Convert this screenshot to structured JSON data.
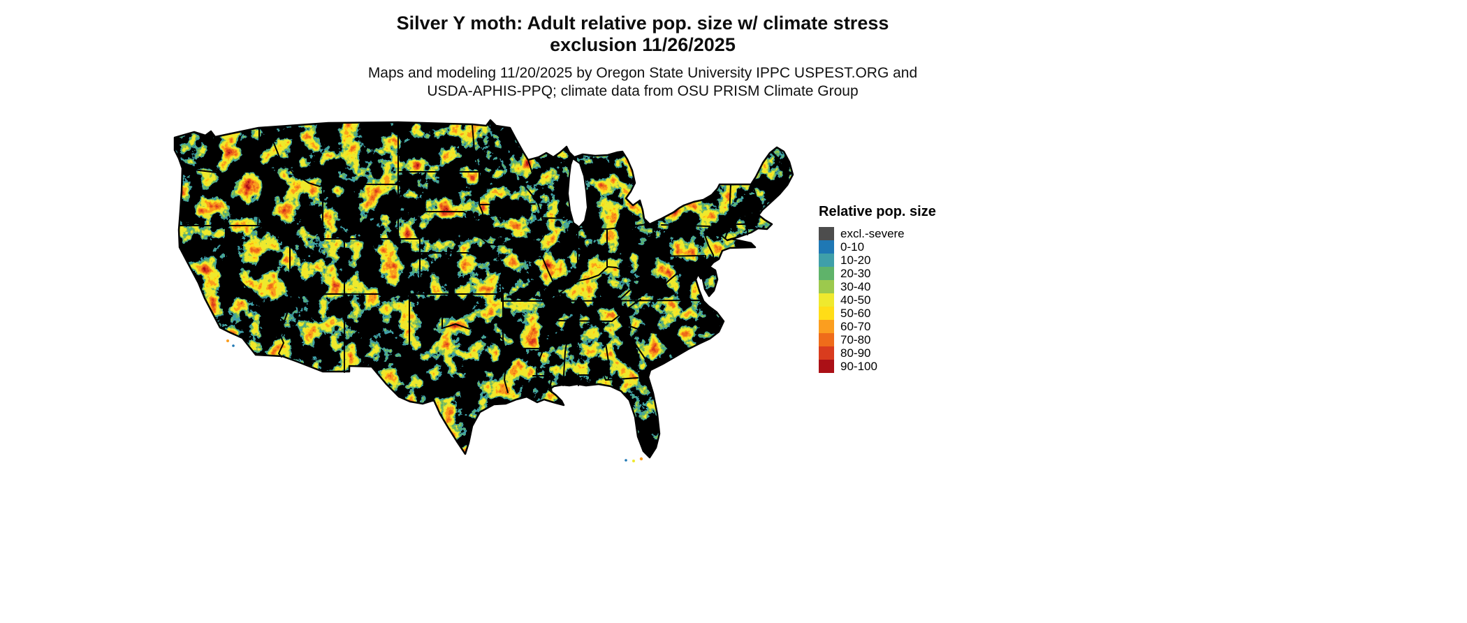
{
  "title": {
    "line1": "Silver Y moth: Adult relative pop. size w/ climate stress",
    "line2": "exclusion 11/26/2025"
  },
  "subtitle": {
    "line1": "Maps and modeling 11/20/2025 by Oregon State University IPPC USPEST.ORG and",
    "line2": "USDA-APHIS-PPQ; climate data from OSU PRISM Climate Group"
  },
  "map": {
    "region": "conterminous-united-states",
    "base_color": "#1f78b4",
    "border_color": "#000000"
  },
  "legend": {
    "title": "Relative pop. size",
    "items": [
      {
        "label": "excl.-severe",
        "color": "#4d4d4d"
      },
      {
        "label": "0-10",
        "color": "#1f78b4"
      },
      {
        "label": "10-20",
        "color": "#3f9fa9"
      },
      {
        "label": "20-30",
        "color": "#5fb36a"
      },
      {
        "label": "30-40",
        "color": "#9cc94d"
      },
      {
        "label": "40-50",
        "color": "#efe92e"
      },
      {
        "label": "50-60",
        "color": "#ffdd17"
      },
      {
        "label": "60-70",
        "color": "#fb9e1f"
      },
      {
        "label": "70-80",
        "color": "#ef6c1a"
      },
      {
        "label": "80-90",
        "color": "#d93c1e"
      },
      {
        "label": "90-100",
        "color": "#ab1016"
      }
    ]
  }
}
